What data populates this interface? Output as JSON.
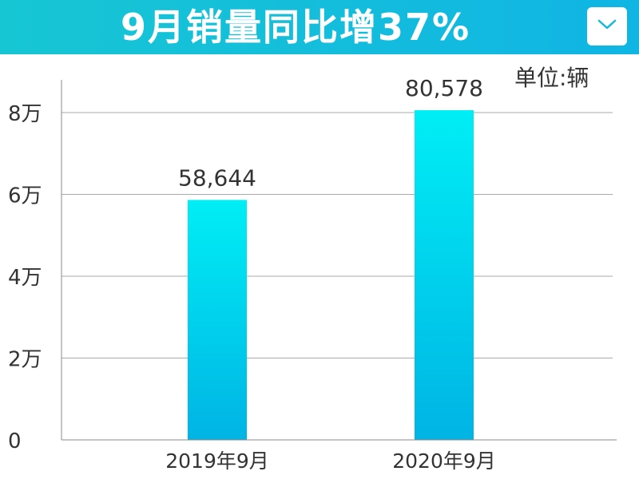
{
  "header": {
    "title": "9月销量同比增37%",
    "dropdown_icon": "chevron-down-icon",
    "accent_color": "#12bde0"
  },
  "chart_data": {
    "type": "bar",
    "title": "9月销量同比增37%",
    "unit_label": "单位:辆",
    "categories": [
      "2019年9月",
      "2020年9月"
    ],
    "values": [
      58644,
      80578
    ],
    "data_labels": [
      "58,644",
      "80,578"
    ],
    "y_ticks": [
      0,
      20000,
      40000,
      60000,
      80000
    ],
    "y_tick_labels": [
      "0",
      "2万",
      "4万",
      "6万",
      "8万"
    ],
    "ylim": [
      0,
      88000
    ],
    "grid": true,
    "bar_color_top": "#00eef5",
    "bar_color_bottom": "#00b4e4"
  }
}
